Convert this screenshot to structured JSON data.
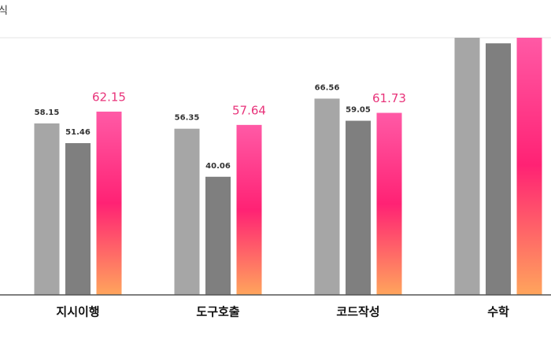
{
  "chart_data": {
    "type": "bar",
    "title": "식",
    "categories": [
      "지시이행",
      "도구호출",
      "코드작성",
      "수학"
    ],
    "series": [
      {
        "color": "#a6a6a6",
        "values": [
          58.15,
          56.35,
          66.56,
          87.5
        ]
      },
      {
        "color": "#7f7f7f",
        "values": [
          51.46,
          40.06,
          59.05,
          85.3
        ]
      },
      {
        "color": "#ff2d84",
        "values": [
          62.15,
          57.64,
          61.73,
          88
        ]
      }
    ],
    "ylim": [
      0,
      87.2
    ]
  }
}
